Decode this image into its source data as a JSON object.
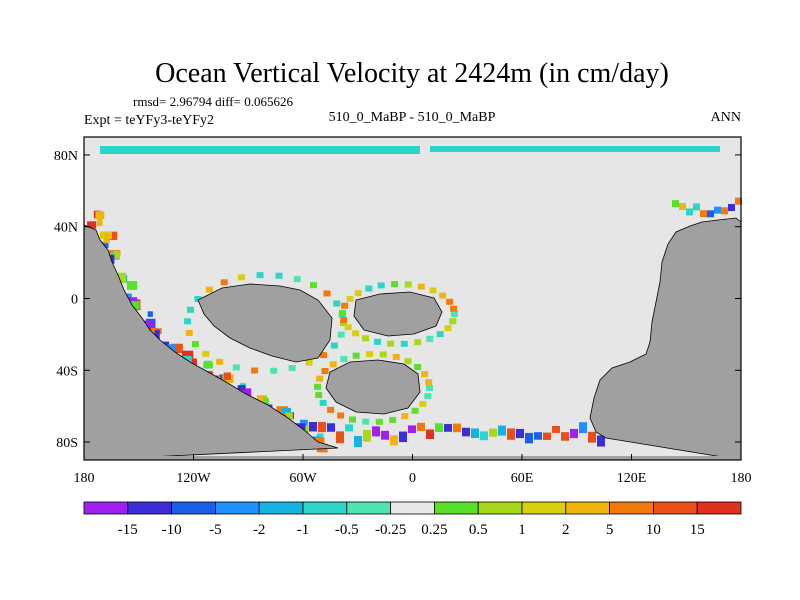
{
  "chart_data": {
    "type": "heatmap",
    "title": "Ocean Vertical Velocity at 2424m (in cm/day)",
    "stats_line": "rmsd= 2.96794 diff= 0.065626",
    "left_label": "Expt = teYFy3-teYFy2",
    "center_label": "510_0_MaBP - 510_0_MaBP",
    "right_label": "ANN",
    "x_ticks": [
      "180",
      "120W",
      "60W",
      "0",
      "60E",
      "120E",
      "180"
    ],
    "x_tick_values": [
      -180,
      -120,
      -60,
      0,
      60,
      120,
      180
    ],
    "y_ticks": [
      "80N",
      "40N",
      "0",
      "40S",
      "80S"
    ],
    "y_tick_values": [
      80,
      40,
      0,
      -40,
      -80
    ],
    "xlim": [
      -180,
      180
    ],
    "ylim": [
      -90,
      90
    ],
    "colorbar": {
      "levels": [
        "-15",
        "-10",
        "-5",
        "-2",
        "-1",
        "-0.5",
        "-0.25",
        "0.25",
        "0.5",
        "1",
        "2",
        "5",
        "10",
        "15"
      ],
      "colors": [
        "#a020f0",
        "#3a2fd6",
        "#1a5fe8",
        "#1e90ff",
        "#17b3e0",
        "#2bd6c8",
        "#4ee3b0",
        "#e8e8e8",
        "#59e02b",
        "#a8d81a",
        "#d9cf12",
        "#f0b410",
        "#f07a0e",
        "#e8501a",
        "#e0301e"
      ]
    },
    "land_color": "#a0a0a0",
    "neutral_color": "#e6e6e6"
  }
}
